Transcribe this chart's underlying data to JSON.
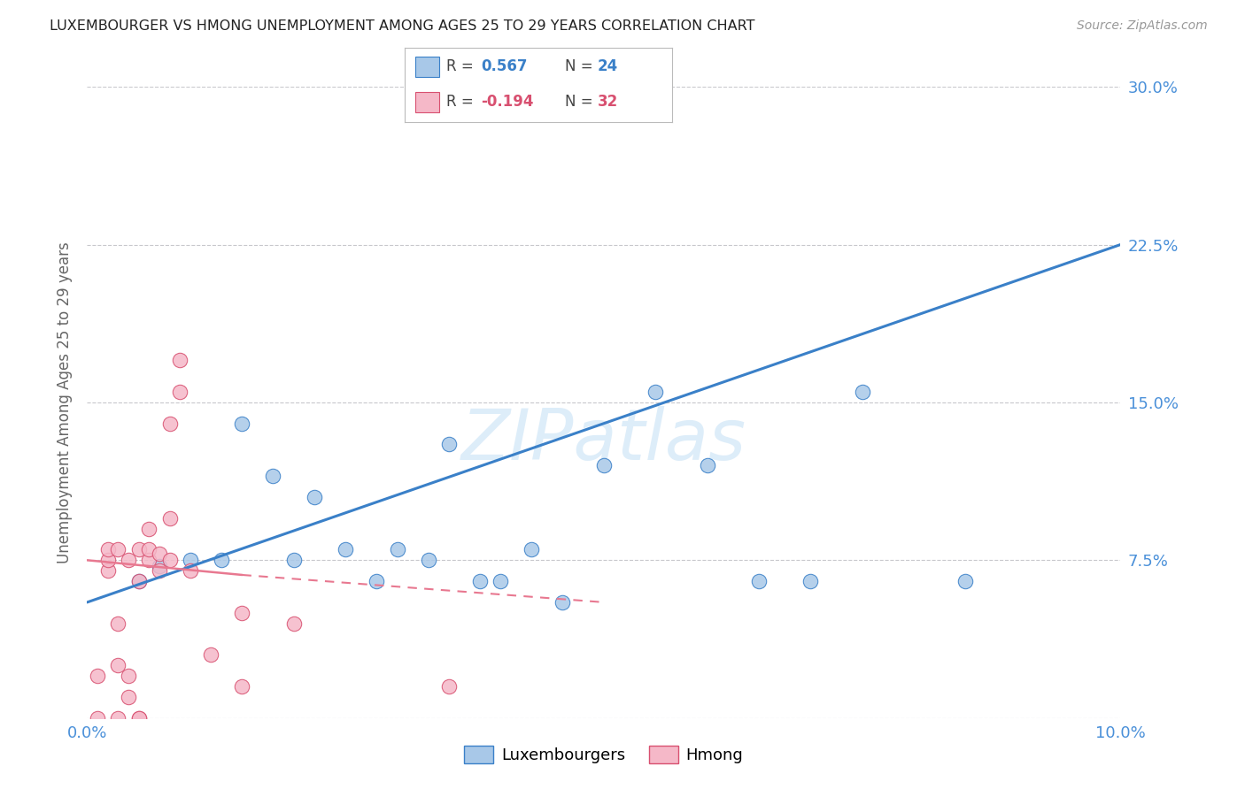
{
  "title": "LUXEMBOURGER VS HMONG UNEMPLOYMENT AMONG AGES 25 TO 29 YEARS CORRELATION CHART",
  "source": "Source: ZipAtlas.com",
  "ylabel": "Unemployment Among Ages 25 to 29 years",
  "xlim": [
    0.0,
    0.1
  ],
  "ylim": [
    0.0,
    0.3
  ],
  "xticks": [
    0.0,
    0.025,
    0.05,
    0.075,
    0.1
  ],
  "xticklabels": [
    "0.0%",
    "",
    "",
    "",
    "10.0%"
  ],
  "ytick_positions": [
    0.0,
    0.075,
    0.15,
    0.225,
    0.3
  ],
  "ytick_labels": [
    "",
    "7.5%",
    "15.0%",
    "22.5%",
    "30.0%"
  ],
  "lux_R": 0.567,
  "lux_N": 24,
  "hmong_R": -0.194,
  "hmong_N": 32,
  "lux_color": "#a8c8e8",
  "hmong_color": "#f5b8c8",
  "trend_lux_color": "#3a80c8",
  "trend_hmong_color": "#e87890",
  "hmong_edge_color": "#d85070",
  "watermark": "ZIPatlas",
  "lux_scatter_x": [
    0.005,
    0.007,
    0.01,
    0.013,
    0.015,
    0.018,
    0.02,
    0.022,
    0.025,
    0.028,
    0.03,
    0.033,
    0.035,
    0.038,
    0.04,
    0.043,
    0.046,
    0.05,
    0.055,
    0.06,
    0.065,
    0.07,
    0.075,
    0.085
  ],
  "lux_scatter_y": [
    0.065,
    0.072,
    0.075,
    0.075,
    0.14,
    0.115,
    0.075,
    0.105,
    0.08,
    0.065,
    0.08,
    0.075,
    0.13,
    0.065,
    0.065,
    0.08,
    0.055,
    0.12,
    0.155,
    0.12,
    0.065,
    0.065,
    0.155,
    0.065
  ],
  "hmong_scatter_x": [
    0.001,
    0.001,
    0.002,
    0.002,
    0.002,
    0.003,
    0.003,
    0.003,
    0.003,
    0.004,
    0.004,
    0.004,
    0.005,
    0.005,
    0.005,
    0.005,
    0.006,
    0.006,
    0.006,
    0.007,
    0.007,
    0.008,
    0.008,
    0.008,
    0.009,
    0.009,
    0.01,
    0.012,
    0.015,
    0.015,
    0.02,
    0.035
  ],
  "hmong_scatter_y": [
    0.0,
    0.02,
    0.07,
    0.075,
    0.08,
    0.0,
    0.025,
    0.045,
    0.08,
    0.01,
    0.02,
    0.075,
    0.0,
    0.0,
    0.065,
    0.08,
    0.075,
    0.08,
    0.09,
    0.07,
    0.078,
    0.075,
    0.095,
    0.14,
    0.155,
    0.17,
    0.07,
    0.03,
    0.015,
    0.05,
    0.045,
    0.015
  ],
  "background_color": "#ffffff",
  "grid_color": "#c8c8cc",
  "lux_trend_x0": 0.0,
  "lux_trend_y0": 0.055,
  "lux_trend_x1": 0.1,
  "lux_trend_y1": 0.225,
  "hmong_trend_x0": 0.0,
  "hmong_trend_y0": 0.075,
  "hmong_trend_x1": 0.05,
  "hmong_trend_y1": 0.055
}
